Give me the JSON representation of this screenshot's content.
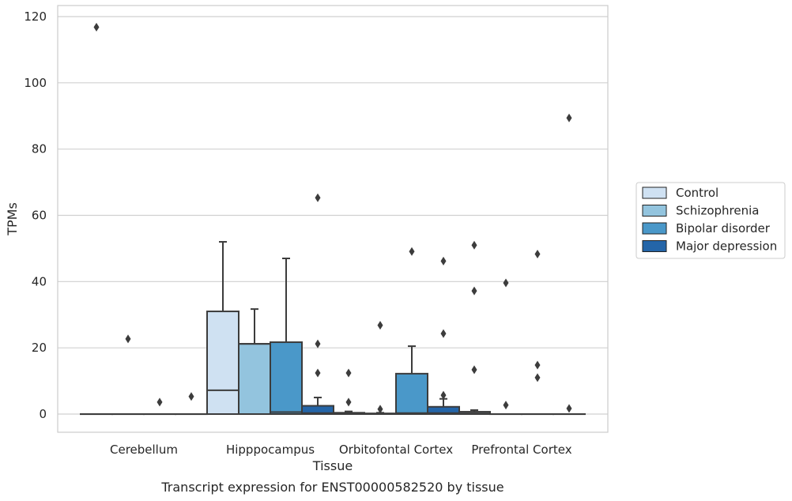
{
  "chart_data": {
    "type": "box",
    "title": "",
    "caption": "Transcript expression for ENST00000582520 by tissue",
    "xlabel": "Tissue",
    "ylabel": "TPMs",
    "ylim": [
      -5.5,
      123
    ],
    "yticks": [
      0,
      20,
      40,
      60,
      80,
      100,
      120
    ],
    "grid": "horizontal",
    "legend_position": "right",
    "categories": [
      "Cerebellum",
      "Hipppocampus",
      "Orbitofontal Cortex",
      "Prefrontal Cortex"
    ],
    "series": [
      {
        "name": "Control",
        "color": "#cfe1f2",
        "boxes": [
          {
            "q1": 0,
            "median": 0,
            "q3": 0,
            "whisker_low": 0,
            "whisker_high": 0,
            "outliers": [
              116.8
            ]
          },
          {
            "q1": 0,
            "median": 7.2,
            "q3": 31.0,
            "whisker_low": 0,
            "whisker_high": 52.0,
            "outliers": []
          },
          {
            "q1": 0,
            "median": 0,
            "q3": 0.4,
            "whisker_low": 0,
            "whisker_high": 0.8,
            "outliers": [
              12.4,
              3.6
            ]
          },
          {
            "q1": 0,
            "median": 0.2,
            "q3": 0.7,
            "whisker_low": 0,
            "whisker_high": 1.2,
            "outliers": [
              51.0,
              37.2,
              13.4
            ]
          }
        ]
      },
      {
        "name": "Schizophrenia",
        "color": "#93c4de",
        "boxes": [
          {
            "q1": 0,
            "median": 0,
            "q3": 0,
            "whisker_low": 0,
            "whisker_high": 0,
            "outliers": [
              22.7
            ]
          },
          {
            "q1": 0,
            "median": 21.2,
            "q3": 21.2,
            "whisker_low": 0,
            "whisker_high": 31.7,
            "outliers": []
          },
          {
            "q1": 0,
            "median": 0,
            "q3": 0.2,
            "whisker_low": 0,
            "whisker_high": 0.4,
            "outliers": [
              26.8,
              1.5
            ]
          },
          {
            "q1": 0,
            "median": 0,
            "q3": 0,
            "whisker_low": 0,
            "whisker_high": 0,
            "outliers": [
              39.6,
              2.7
            ]
          }
        ]
      },
      {
        "name": "Bipolar disorder",
        "color": "#4a98c9",
        "boxes": [
          {
            "q1": 0,
            "median": 0,
            "q3": 0,
            "whisker_low": 0,
            "whisker_high": 0,
            "outliers": [
              3.6
            ]
          },
          {
            "q1": 0,
            "median": 0.6,
            "q3": 21.7,
            "whisker_low": 0,
            "whisker_high": 47.0,
            "outliers": []
          },
          {
            "q1": 0,
            "median": 0.3,
            "q3": 12.2,
            "whisker_low": 0,
            "whisker_high": 20.5,
            "outliers": [
              49.1
            ]
          },
          {
            "q1": 0,
            "median": 0,
            "q3": 0,
            "whisker_low": 0,
            "whisker_high": 0,
            "outliers": [
              48.3,
              14.8,
              11.0
            ]
          }
        ]
      },
      {
        "name": "Major depression",
        "color": "#2465a8",
        "boxes": [
          {
            "q1": 0,
            "median": 0,
            "q3": 0,
            "whisker_low": 0,
            "whisker_high": 0,
            "outliers": [
              5.3
            ]
          },
          {
            "q1": 0,
            "median": 0.3,
            "q3": 2.5,
            "whisker_low": 0,
            "whisker_high": 5.0,
            "outliers": [
              65.3,
              21.2,
              12.4
            ]
          },
          {
            "q1": 0,
            "median": 0.3,
            "q3": 2.2,
            "whisker_low": 0,
            "whisker_high": 4.6,
            "outliers": [
              46.2,
              24.3,
              5.7
            ]
          },
          {
            "q1": 0,
            "median": 0,
            "q3": 0,
            "whisker_low": 0,
            "whisker_high": 0,
            "outliers": [
              89.4,
              1.7
            ]
          }
        ]
      }
    ]
  }
}
